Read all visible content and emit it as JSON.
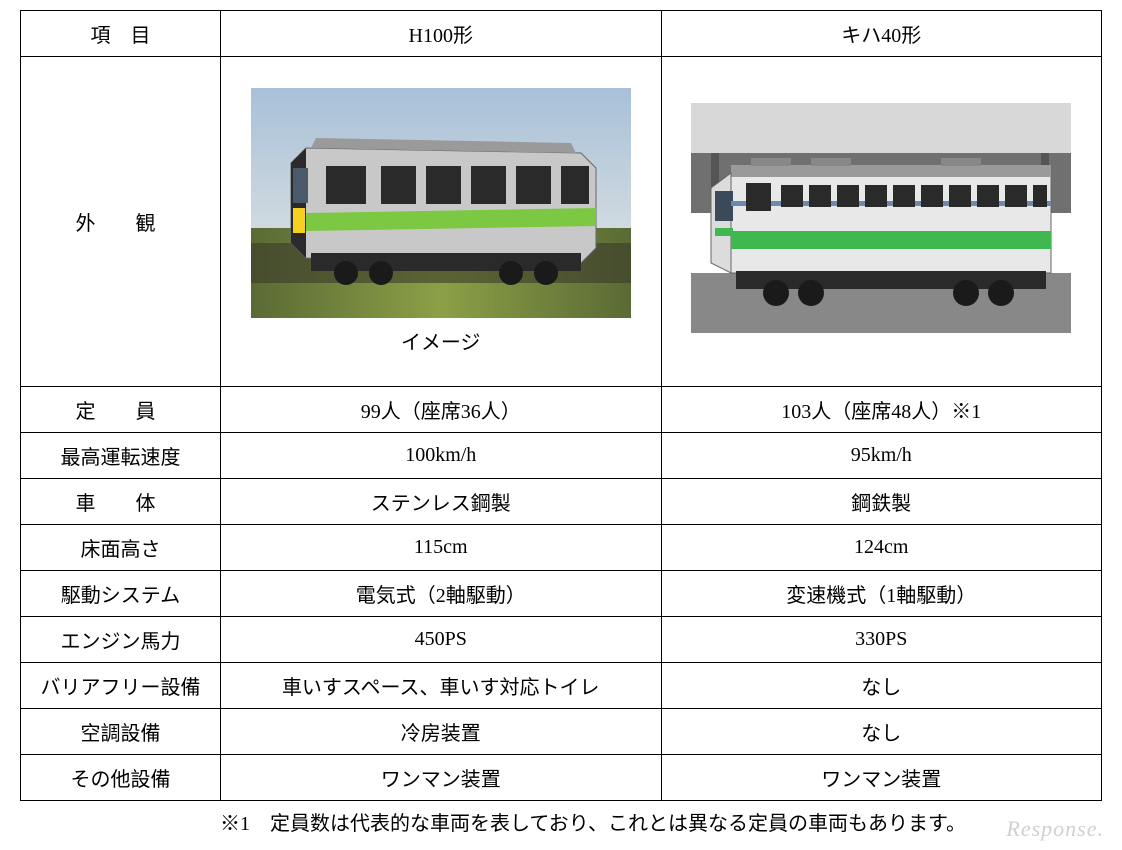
{
  "table": {
    "header": {
      "col_label": "項　目",
      "col_h100": "H100形",
      "col_kiha40": "キハ40形"
    },
    "exterior": {
      "label": "外　観",
      "h100_caption": "イメージ",
      "kiha40_caption": "",
      "h100_colors": {
        "body": "#c8c8c8",
        "stripe": "#7dc843",
        "accent": "#f5d020",
        "dark": "#3a3a3a",
        "window": "#2a2a2a",
        "ground_grass": "#8ba046",
        "ground_blur": "#6b7a3f",
        "sky": "#a8c0d8"
      },
      "kiha40_colors": {
        "body": "#e8e8e8",
        "stripe_green": "#3fb850",
        "stripe_blue": "#6a8ab0",
        "dark": "#3a3a3a",
        "window": "#2a2a2a",
        "platform": "#888888",
        "roof_bg": "#707070",
        "sky": "#d8d8d8"
      }
    },
    "rows": [
      {
        "label": "定　員",
        "label_class": "label-cell",
        "h100": "99人（座席36人）",
        "kiha40": "103人（座席48人）※1"
      },
      {
        "label": "最高運転速度",
        "label_class": "label-cell-tight",
        "h100": "100km/h",
        "kiha40": "95km/h"
      },
      {
        "label": "車　体",
        "label_class": "label-cell",
        "h100": "ステンレス鋼製",
        "kiha40": "鋼鉄製"
      },
      {
        "label": "床面高さ",
        "label_class": "label-cell-tight",
        "h100": "115cm",
        "kiha40": "124cm"
      },
      {
        "label": "駆動システム",
        "label_class": "label-cell-tight",
        "h100": "電気式（2軸駆動）",
        "kiha40": "変速機式（1軸駆動）"
      },
      {
        "label": "エンジン馬力",
        "label_class": "label-cell-tight",
        "h100": "450PS",
        "kiha40": "330PS"
      },
      {
        "label": "バリアフリー設備",
        "label_class": "label-cell-tight",
        "h100": "車いすスペース、車いす対応トイレ",
        "kiha40": "なし"
      },
      {
        "label": "空調設備",
        "label_class": "label-cell-tight",
        "h100": "冷房装置",
        "kiha40": "なし"
      },
      {
        "label": "その他設備",
        "label_class": "label-cell-tight",
        "h100": "ワンマン装置",
        "kiha40": "ワンマン装置"
      }
    ]
  },
  "footnote": "※1　定員数は代表的な車両を表しており、これとは異なる定員の車両もあります。",
  "watermark": "Response."
}
